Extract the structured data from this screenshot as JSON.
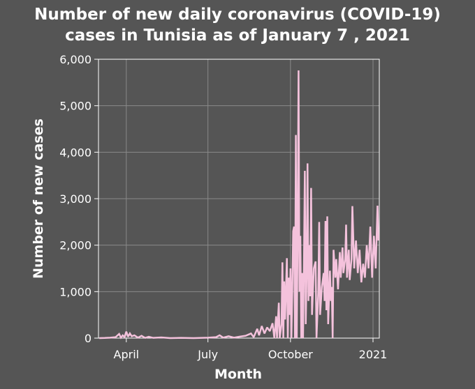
{
  "chart_data": {
    "type": "line",
    "title_line1": "Number of new daily coronavirus (COVID-19)",
    "title_line2": "cases in Tunisia as of January 7 , 2021",
    "xlabel": "Month",
    "ylabel": "Number of new cases",
    "xlim": [
      "2020-03-01",
      "2021-01-08"
    ],
    "ylim": [
      0,
      6000
    ],
    "y_ticks": [
      0,
      1000,
      2000,
      3000,
      4000,
      5000,
      6000
    ],
    "y_tick_labels": [
      "0",
      "1,000",
      "2,000",
      "3,000",
      "4,000",
      "5,000",
      "6,000"
    ],
    "x_ticks": [
      "2020-04-01",
      "2020-07-01",
      "2020-10-01",
      "2021-01-01"
    ],
    "x_tick_labels": [
      "April",
      "July",
      "October",
      "2021"
    ],
    "grid": true,
    "line_color": "#f4c2dc",
    "series": [
      {
        "points": [
          [
            "2020-03-02",
            0
          ],
          [
            "2020-03-08",
            3
          ],
          [
            "2020-03-14",
            10
          ],
          [
            "2020-03-20",
            20
          ],
          [
            "2020-03-24",
            90
          ],
          [
            "2020-03-26",
            10
          ],
          [
            "2020-03-28",
            60
          ],
          [
            "2020-03-30",
            20
          ],
          [
            "2020-04-01",
            140
          ],
          [
            "2020-04-03",
            30
          ],
          [
            "2020-04-05",
            100
          ],
          [
            "2020-04-07",
            40
          ],
          [
            "2020-04-10",
            60
          ],
          [
            "2020-04-14",
            10
          ],
          [
            "2020-04-18",
            50
          ],
          [
            "2020-04-22",
            5
          ],
          [
            "2020-04-26",
            30
          ],
          [
            "2020-05-01",
            5
          ],
          [
            "2020-05-10",
            15
          ],
          [
            "2020-05-20",
            0
          ],
          [
            "2020-06-01",
            5
          ],
          [
            "2020-06-15",
            0
          ],
          [
            "2020-07-01",
            10
          ],
          [
            "2020-07-10",
            20
          ],
          [
            "2020-07-14",
            60
          ],
          [
            "2020-07-18",
            10
          ],
          [
            "2020-07-24",
            40
          ],
          [
            "2020-07-30",
            10
          ],
          [
            "2020-08-05",
            30
          ],
          [
            "2020-08-12",
            50
          ],
          [
            "2020-08-18",
            100
          ],
          [
            "2020-08-21",
            20
          ],
          [
            "2020-08-25",
            200
          ],
          [
            "2020-08-27",
            60
          ],
          [
            "2020-08-30",
            260
          ],
          [
            "2020-09-02",
            100
          ],
          [
            "2020-09-05",
            230
          ],
          [
            "2020-09-08",
            150
          ],
          [
            "2020-09-11",
            320
          ],
          [
            "2020-09-13",
            0
          ],
          [
            "2020-09-15",
            470
          ],
          [
            "2020-09-16",
            0
          ],
          [
            "2020-09-18",
            760
          ],
          [
            "2020-09-19",
            0
          ],
          [
            "2020-09-21",
            300
          ],
          [
            "2020-09-22",
            1630
          ],
          [
            "2020-09-23",
            0
          ],
          [
            "2020-09-24",
            1220
          ],
          [
            "2020-09-25",
            400
          ],
          [
            "2020-09-27",
            1720
          ],
          [
            "2020-09-28",
            0
          ],
          [
            "2020-09-29",
            1300
          ],
          [
            "2020-09-30",
            500
          ],
          [
            "2020-10-01",
            1500
          ],
          [
            "2020-10-02",
            0
          ],
          [
            "2020-10-03",
            1000
          ],
          [
            "2020-10-04",
            2300
          ],
          [
            "2020-10-05",
            2400
          ],
          [
            "2020-10-06",
            0
          ],
          [
            "2020-10-07",
            4370
          ],
          [
            "2020-10-08",
            0
          ],
          [
            "2020-10-09",
            2200
          ],
          [
            "2020-10-10",
            5760
          ],
          [
            "2020-10-11",
            1000
          ],
          [
            "2020-10-12",
            2200
          ],
          [
            "2020-10-13",
            0
          ],
          [
            "2020-10-14",
            1400
          ],
          [
            "2020-10-15",
            0
          ],
          [
            "2020-10-16",
            1600
          ],
          [
            "2020-10-17",
            3600
          ],
          [
            "2020-10-18",
            300
          ],
          [
            "2020-10-19",
            1400
          ],
          [
            "2020-10-20",
            3760
          ],
          [
            "2020-10-21",
            800
          ],
          [
            "2020-10-22",
            2000
          ],
          [
            "2020-10-23",
            900
          ],
          [
            "2020-10-24",
            3230
          ],
          [
            "2020-10-25",
            500
          ],
          [
            "2020-10-27",
            1500
          ],
          [
            "2020-10-29",
            1650
          ],
          [
            "2020-10-30",
            0
          ],
          [
            "2020-11-01",
            1000
          ],
          [
            "2020-11-02",
            2500
          ],
          [
            "2020-11-03",
            500
          ],
          [
            "2020-11-05",
            1100
          ],
          [
            "2020-11-07",
            1400
          ],
          [
            "2020-11-08",
            800
          ],
          [
            "2020-11-09",
            2520
          ],
          [
            "2020-11-10",
            600
          ],
          [
            "2020-11-11",
            2620
          ],
          [
            "2020-11-12",
            300
          ],
          [
            "2020-11-14",
            1450
          ],
          [
            "2020-11-15",
            800
          ],
          [
            "2020-11-16",
            1100
          ],
          [
            "2020-11-17",
            0
          ],
          [
            "2020-11-18",
            1900
          ],
          [
            "2020-11-20",
            1300
          ],
          [
            "2020-11-21",
            1700
          ],
          [
            "2020-11-23",
            1050
          ],
          [
            "2020-11-25",
            1850
          ],
          [
            "2020-11-26",
            1300
          ],
          [
            "2020-11-28",
            1950
          ],
          [
            "2020-11-29",
            1400
          ],
          [
            "2020-12-01",
            1700
          ],
          [
            "2020-12-02",
            2440
          ],
          [
            "2020-12-03",
            1300
          ],
          [
            "2020-12-05",
            1900
          ],
          [
            "2020-12-06",
            1250
          ],
          [
            "2020-12-08",
            1700
          ],
          [
            "2020-12-09",
            2840
          ],
          [
            "2020-12-11",
            1500
          ],
          [
            "2020-12-13",
            2100
          ],
          [
            "2020-12-15",
            1400
          ],
          [
            "2020-12-17",
            1900
          ],
          [
            "2020-12-19",
            1200
          ],
          [
            "2020-12-21",
            1600
          ],
          [
            "2020-12-23",
            1300
          ],
          [
            "2020-12-25",
            2000
          ],
          [
            "2020-12-27",
            1500
          ],
          [
            "2020-12-29",
            2400
          ],
          [
            "2020-12-31",
            1300
          ],
          [
            "2021-01-02",
            2200
          ],
          [
            "2021-01-04",
            1500
          ],
          [
            "2021-01-06",
            2850
          ],
          [
            "2021-01-07",
            2100
          ]
        ]
      }
    ]
  }
}
